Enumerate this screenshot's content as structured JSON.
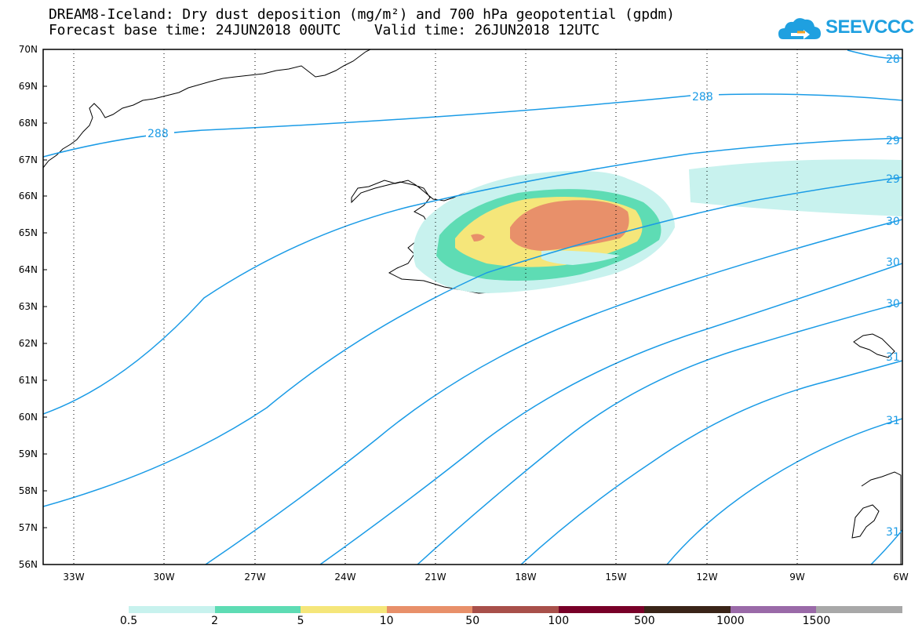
{
  "header": {
    "title_line1": "DREAM8-Iceland: Dry dust deposition (mg/m²) and 700 hPa geopotential (gpdm)",
    "title_line2": "Forecast base time: 24JUN2018 00UTC    Valid time: 26JUN2018 12UTC"
  },
  "logo": {
    "text": "SEEVCCC",
    "icon": "cloud-arrow-icon",
    "color": "#1fa0e0"
  },
  "map": {
    "lat_range": [
      56,
      70
    ],
    "lon_range": [
      -34.5,
      -6
    ],
    "lat_labels": [
      "70N",
      "69N",
      "68N",
      "67N",
      "66N",
      "65N",
      "64N",
      "63N",
      "62N",
      "61N",
      "60N",
      "59N",
      "58N",
      "57N",
      "56N"
    ],
    "lon_labels": [
      "33W",
      "30W",
      "27W",
      "24W",
      "21W",
      "18W",
      "15W",
      "12W",
      "9W",
      "6W"
    ],
    "contour_color": "#1a9be6",
    "contour_labels": [
      "288",
      "288",
      "28",
      "29",
      "29",
      "30",
      "30",
      "30",
      "31",
      "31",
      "31"
    ]
  },
  "legend": {
    "colors": [
      "#c8f2ee",
      "#5edcb4",
      "#f5e67a",
      "#e8906a",
      "#a8504a",
      "#780028",
      "#3a2418",
      "#9a6aa8",
      "#a8a8a8"
    ],
    "labels": [
      "0.5",
      "2",
      "5",
      "10",
      "50",
      "100",
      "500",
      "1000",
      "1500"
    ]
  }
}
